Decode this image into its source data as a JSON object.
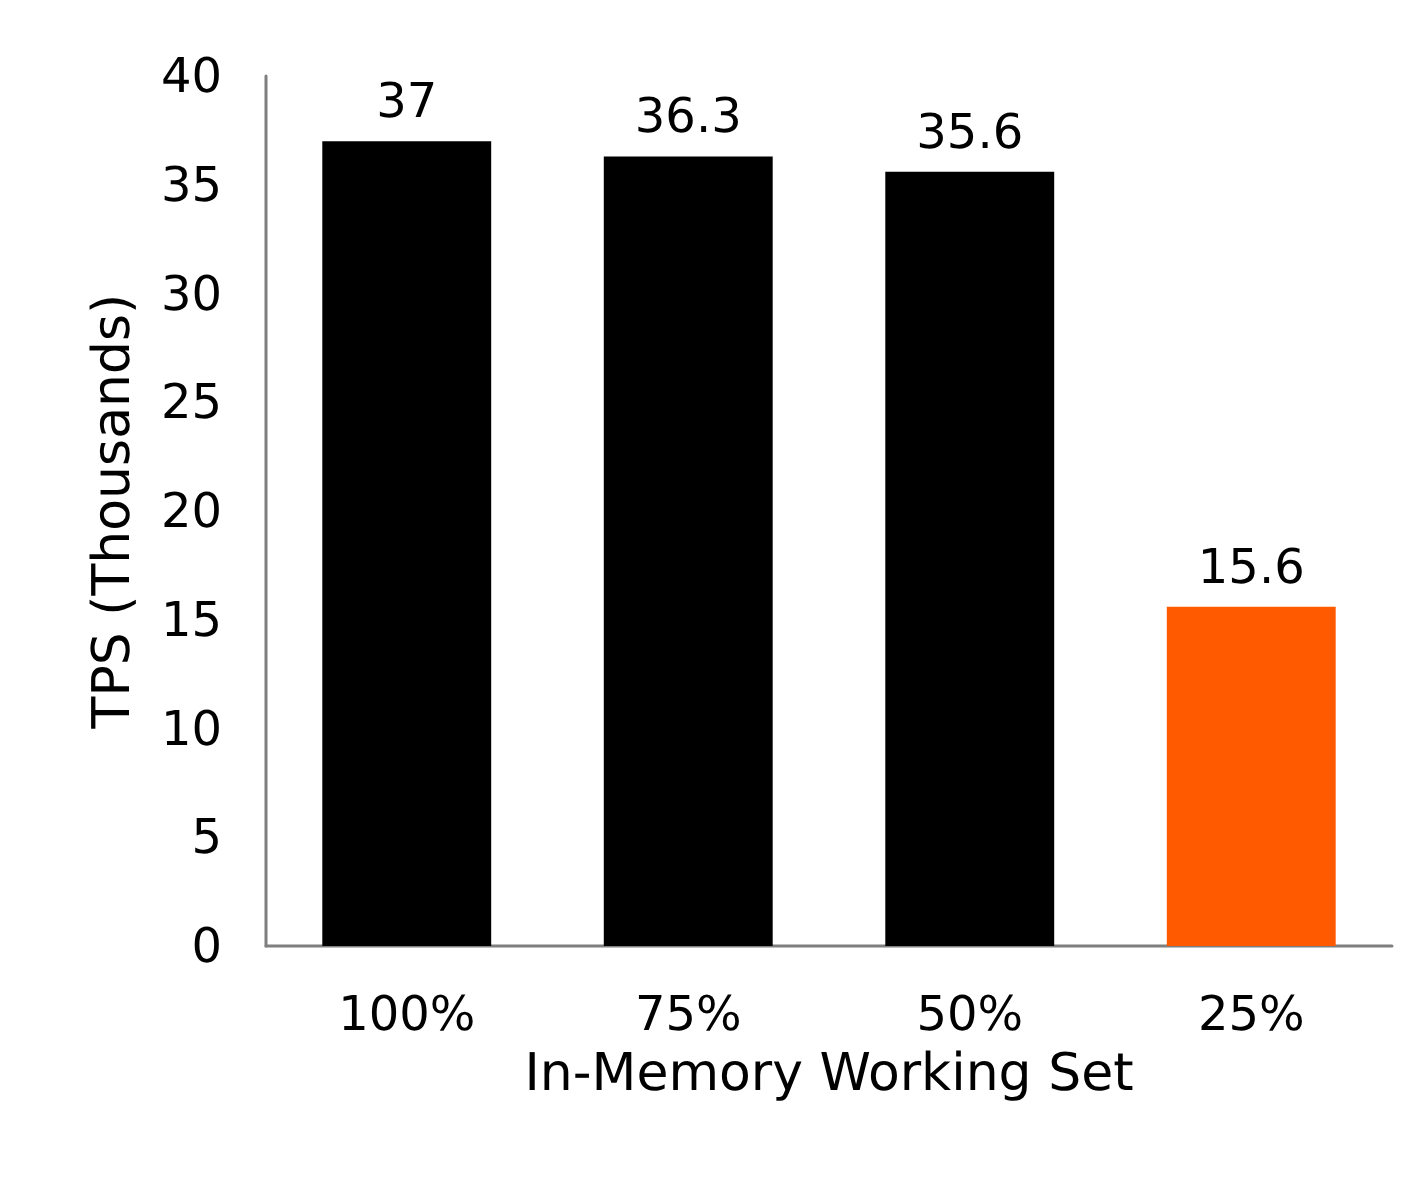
{
  "chart_data": {
    "type": "bar",
    "xlabel": "In-Memory Working Set",
    "ylabel": "TPS (Thousands)",
    "categories": [
      "100%",
      "75%",
      "50%",
      "25%"
    ],
    "values": [
      37,
      36.3,
      35.6,
      15.6
    ],
    "colors": [
      "#000000",
      "#000000",
      "#000000",
      "#ff5a00"
    ],
    "ylim": [
      0,
      40
    ],
    "yticks": [
      0,
      5,
      10,
      15,
      20,
      25,
      30,
      35,
      40
    ],
    "data_labels": true,
    "grid": false
  }
}
